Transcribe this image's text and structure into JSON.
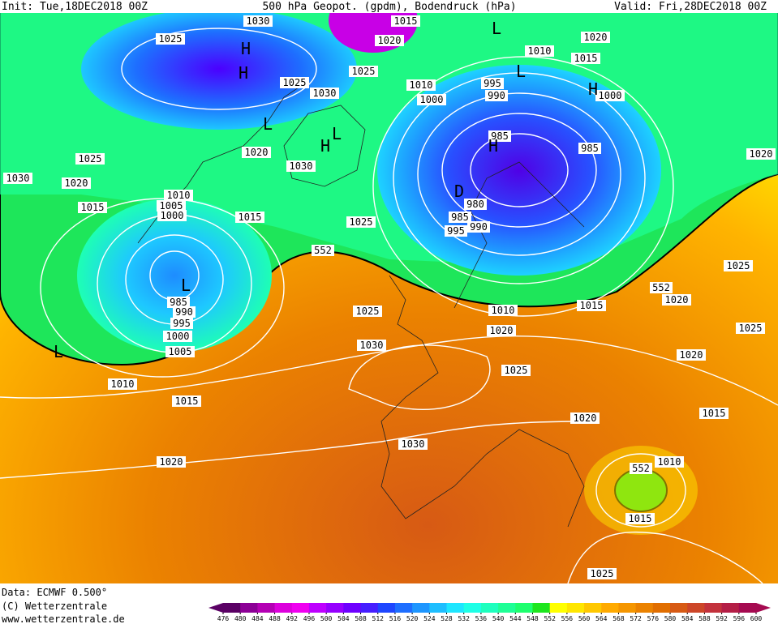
{
  "header": {
    "init": "Init: Tue,18DEC2018 00Z",
    "title": "500 hPa Geopot. (gpdm), Bodendruck (hPa)",
    "valid": "Valid: Fri,28DEC2018 00Z"
  },
  "footer": {
    "source": "Data: ECMWF  0.500°",
    "copyright": "(C) Wetterzentrale",
    "url": "www.wetterzentrale.de"
  },
  "isobar_labels": [
    "1030",
    "1015",
    "1025",
    "1020",
    "1025",
    "1025",
    "1030",
    "1010",
    "1020",
    "1015",
    "995",
    "1010",
    "990",
    "1000",
    "1000",
    "1020",
    "985",
    "985",
    "1020",
    "1025",
    "1030",
    "1030",
    "1020",
    "1010",
    "1005",
    "1000",
    "1015",
    "1015",
    "980",
    "985",
    "990",
    "995",
    "1025",
    "552",
    "1025",
    "552",
    "1020",
    "985",
    "990",
    "995",
    "1000",
    "1005",
    "1025",
    "1010",
    "1015",
    "1020",
    "1025",
    "1030",
    "1020",
    "1025",
    "1010",
    "1015",
    "1015",
    "1020",
    "1030",
    "1020",
    "552",
    "1010",
    "1015",
    "1025"
  ],
  "pressure_centers": [
    "L",
    "H",
    "L",
    "H",
    "L",
    "L",
    "H",
    "H",
    "L",
    "L",
    "D",
    "H"
  ],
  "colorbar": {
    "ticks": [
      476,
      480,
      484,
      488,
      492,
      496,
      500,
      504,
      508,
      512,
      516,
      520,
      524,
      528,
      532,
      536,
      540,
      544,
      548,
      552,
      556,
      560,
      564,
      568,
      572,
      576,
      580,
      584,
      588,
      592,
      596,
      600
    ],
    "colors": [
      "#5a0064",
      "#8c0096",
      "#b400b4",
      "#dc00dc",
      "#f000f0",
      "#be00ff",
      "#9600ff",
      "#6e00ff",
      "#461eff",
      "#1e46ff",
      "#1e6eff",
      "#1e96ff",
      "#1ebeff",
      "#1ee6ff",
      "#1effe6",
      "#1effbe",
      "#1eff96",
      "#1eff6e",
      "#1ee61e",
      "#ffff00",
      "#ffe600",
      "#ffc800",
      "#ffaa00",
      "#f59600",
      "#eb8200",
      "#e16e00",
      "#d75a14",
      "#cd4628",
      "#c3323c",
      "#b41e46",
      "#a50a50"
    ]
  }
}
